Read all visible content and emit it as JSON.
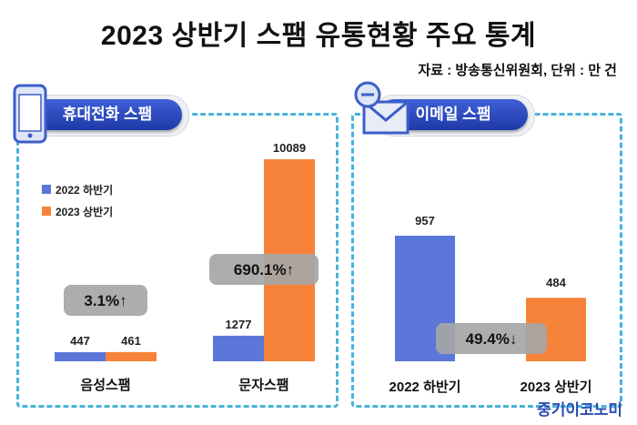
{
  "title": "2023 상반기 스팸 유통현황 주요 통계",
  "source": "자료 : 방송통신위원회, 단위 : 만 건",
  "brand": "중기이코노미",
  "colors": {
    "h2022": "#5b77d9",
    "h2023": "#f7833a",
    "border": "#4ab3d9",
    "pill": "#2a47b8",
    "badge": "#a6a6a6"
  },
  "icons": {
    "phone": "smartphone-icon",
    "email": "email-icon"
  },
  "chart_data": [
    {
      "type": "bar",
      "title": "휴대전화 스팸",
      "categories": [
        "음성스팸",
        "문자스팸"
      ],
      "series": [
        {
          "name": "2022 하반기",
          "values": [
            447,
            1277
          ]
        },
        {
          "name": "2023 상반기",
          "values": [
            461,
            10089
          ]
        }
      ],
      "annotations": [
        "3.1%↑",
        "690.1%↑"
      ],
      "legend": "left"
    },
    {
      "type": "bar",
      "title": "이메일 스팸",
      "categories": [
        "2022 하반기",
        "2023 상반기"
      ],
      "values": [
        957,
        484
      ],
      "annotations": [
        "49.4%↓"
      ]
    }
  ]
}
